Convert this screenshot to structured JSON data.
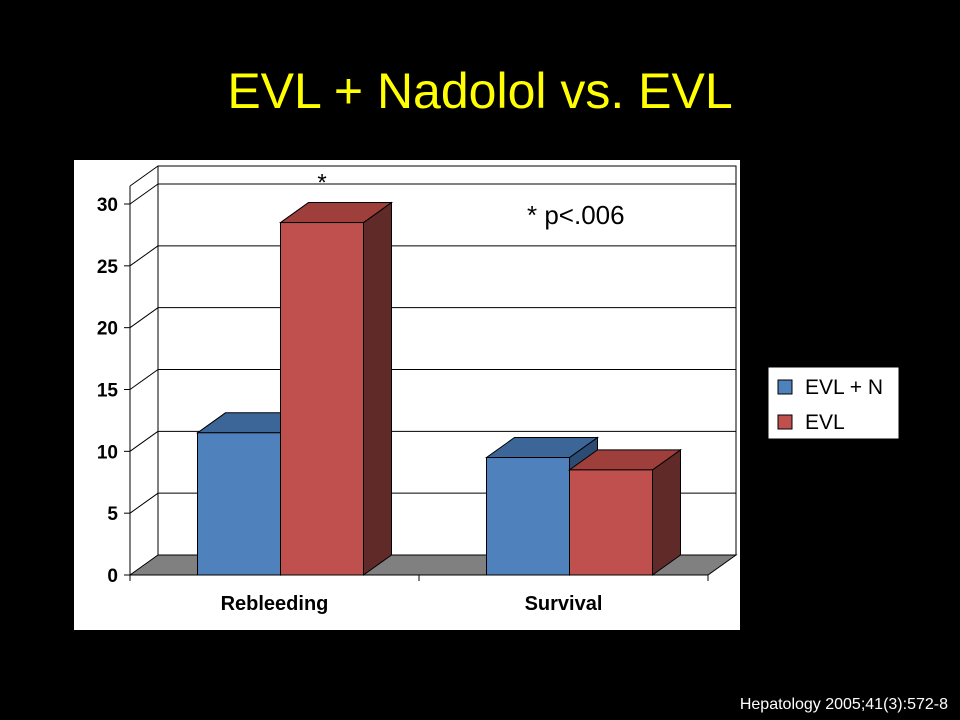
{
  "slide": {
    "title": "EVL + Nadolol vs. EVL",
    "citation": "Hepatology 2005;41(3):572-8"
  },
  "chart_data": {
    "type": "bar",
    "categories": [
      "Rebleeding",
      "Survival"
    ],
    "series": [
      {
        "name": "EVL + N",
        "values": [
          11.5,
          9.5
        ]
      },
      {
        "name": "EVL",
        "values": [
          28.5,
          8.5
        ]
      }
    ],
    "ylim": [
      0,
      30
    ],
    "yticks": [
      0,
      5,
      10,
      15,
      20,
      25,
      30
    ],
    "grid": true,
    "legend": "right",
    "style": "3d",
    "annotations": [
      {
        "text": "*",
        "category": "Rebleeding",
        "series": "EVL"
      },
      {
        "text": "* p<.006"
      }
    ],
    "colors": {
      "EVL + N": {
        "front": "#4f81bd",
        "top": "#3b6697",
        "side": "#2c4c74"
      },
      "EVL": {
        "front": "#c0504d",
        "top": "#9e3f3c",
        "side": "#602a29"
      },
      "plot_background": "#ffffff",
      "floor": "#808080",
      "text": "#000000"
    }
  }
}
